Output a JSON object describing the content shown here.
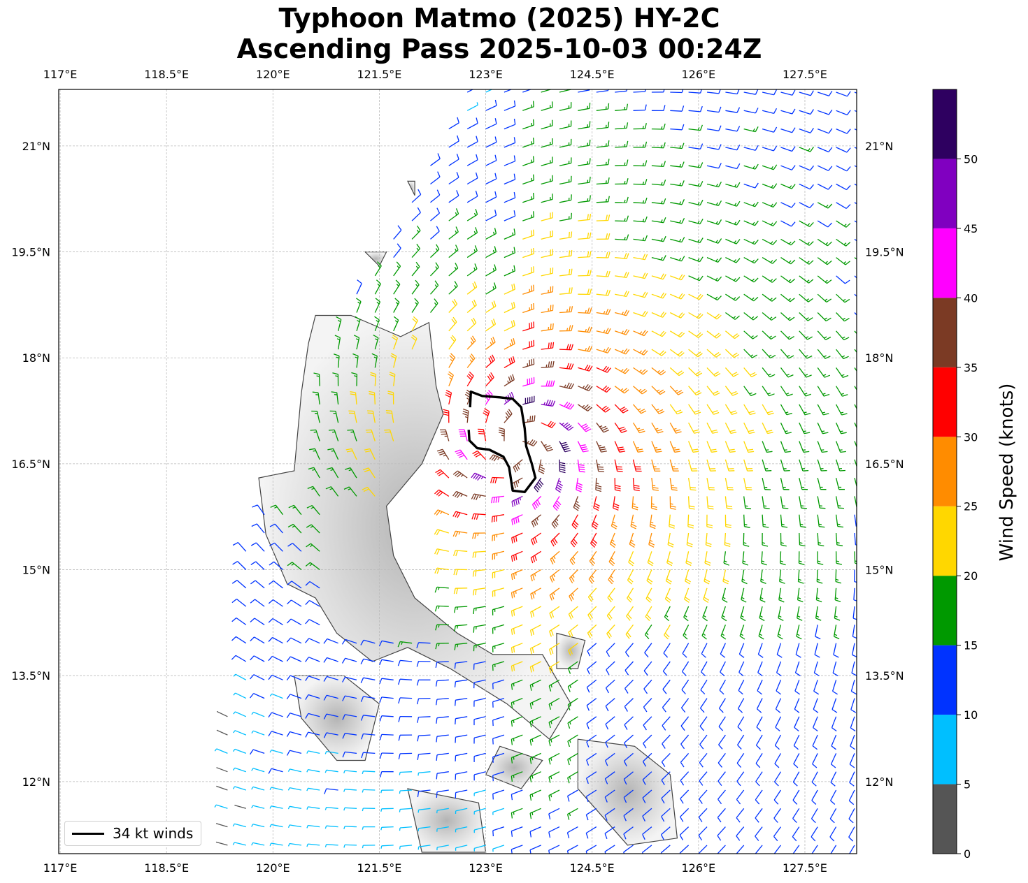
{
  "title": {
    "line1": "Typhoon Matmo (2025) HY-2C",
    "line2": "Ascending Pass 2025-10-03 00:24Z"
  },
  "axes": {
    "lon_ticks": [
      "117°E",
      "118.5°E",
      "120°E",
      "121.5°E",
      "123°E",
      "124.5°E",
      "126°E",
      "127.5°E"
    ],
    "lat_ticks": [
      "21°N",
      "19.5°N",
      "18°N",
      "16.5°N",
      "15°N",
      "13.5°N",
      "12°N"
    ]
  },
  "legend": {
    "label": "34 kt winds",
    "line_color": "#000000"
  },
  "colorbar": {
    "title": "Wind Speed (knots)",
    "tick_labels": [
      "0",
      "5",
      "10",
      "15",
      "20",
      "25",
      "30",
      "35",
      "40",
      "45",
      "50"
    ],
    "bins": [
      {
        "range": "0-5",
        "color": "#555555"
      },
      {
        "range": "5-10",
        "color": "#00bfff"
      },
      {
        "range": "10-15",
        "color": "#0033ff"
      },
      {
        "range": "15-20",
        "color": "#009900"
      },
      {
        "range": "20-25",
        "color": "#ffd700"
      },
      {
        "range": "25-30",
        "color": "#ff8c00"
      },
      {
        "range": "30-35",
        "color": "#ff0000"
      },
      {
        "range": "35-40",
        "color": "#7b3a24"
      },
      {
        "range": "40-45",
        "color": "#ff00ff"
      },
      {
        "range": "45-50",
        "color": "#8000c0"
      },
      {
        "range": "50+",
        "color": "#2e0060"
      }
    ]
  },
  "storm_center": {
    "lon": 123.45,
    "lat": 16.75
  },
  "wind_field_note_colors": {
    "calm": "#0033ff",
    "moderate": "#009900",
    "fresh": "#ffd700",
    "strong": "#ff8c00",
    "gale": "#ff0000",
    "storm": "#7b3a24",
    "violent": "#ff00ff"
  }
}
